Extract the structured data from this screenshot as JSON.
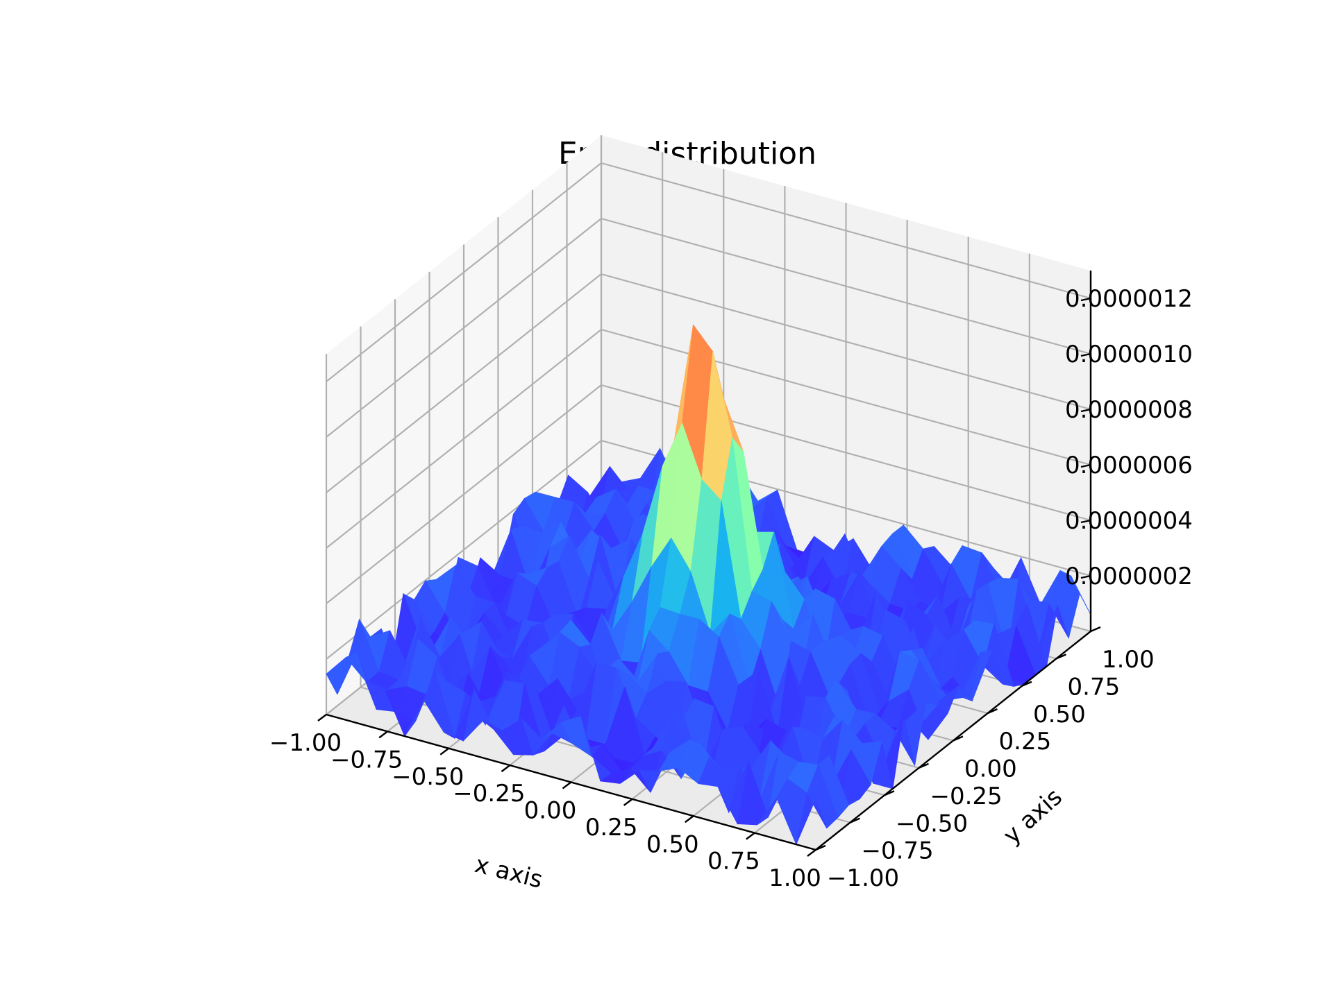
{
  "chart_data": {
    "type": "surface3d",
    "title": "Error distribution",
    "xlabel": "x axis",
    "ylabel": "y axis",
    "zlabel": "",
    "xlim": [
      -1.0,
      1.0
    ],
    "ylim": [
      -1.0,
      1.0
    ],
    "zlim": [
      0.0,
      1.3e-06
    ],
    "x_ticks": [
      "−1.00",
      "−0.75",
      "−0.50",
      "−0.25",
      "0.00",
      "0.25",
      "0.50",
      "0.75",
      "1.00"
    ],
    "y_ticks": [
      "−1.00",
      "−0.75",
      "−0.50",
      "−0.25",
      "0.00",
      "0.25",
      "0.50",
      "0.75",
      "1.00"
    ],
    "z_ticks": [
      "0.0000002",
      "0.0000004",
      "0.0000006",
      "0.0000008",
      "0.0000010",
      "0.0000012"
    ],
    "surface": {
      "description_shape": "noisy plateau with central peak",
      "grid": 25,
      "peak_center": [
        0.0,
        0.0
      ],
      "peak_width": 0.2,
      "peak_value": 1.2e-06,
      "base_value": 1e-07,
      "noise_amplitude": 1.5e-07
    },
    "grid": true,
    "colormap": "jet",
    "colormap_stops": [
      "#3a1eff",
      "#2f6bff",
      "#18b6f0",
      "#7dffb0",
      "#f7f77a",
      "#ff9f55",
      "#ff1a00"
    ],
    "pane_colors": [
      "#f2f2f2",
      "#f7f7f7",
      "#ebebeb"
    ],
    "gridline_color": "#b0b0b0"
  }
}
